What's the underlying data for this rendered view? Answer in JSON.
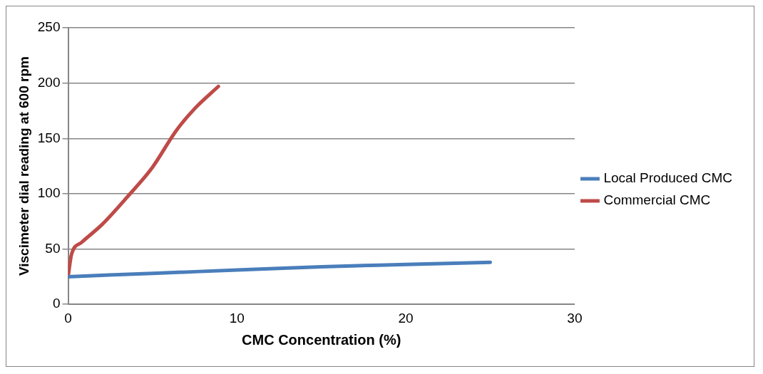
{
  "chart_data": {
    "type": "line",
    "xlabel": "CMC Concentration (%)",
    "ylabel": "Viscimeter dial reading at 600 rpm",
    "xlim": [
      0,
      30
    ],
    "xticks": [
      0,
      10,
      20,
      30
    ],
    "ylim": [
      0,
      250
    ],
    "yticks": [
      0,
      50,
      100,
      150,
      200,
      250
    ],
    "grid": "y",
    "legend": "right",
    "marker": "none",
    "line_style": "solid",
    "series": [
      {
        "name": "Local Produced CMC",
        "color": "#4a7ebb",
        "x": [
          0,
          5,
          10,
          15,
          20,
          25
        ],
        "values": [
          25,
          28,
          31,
          34,
          36,
          38
        ]
      },
      {
        "name": "Commercial CMC",
        "color": "#be4b48",
        "x": [
          0,
          0.2,
          0.8,
          2,
          3.5,
          5,
          6.4,
          7.5,
          8.9
        ],
        "values": [
          25,
          45,
          56,
          72,
          97,
          124,
          157,
          177,
          197
        ]
      }
    ]
  }
}
